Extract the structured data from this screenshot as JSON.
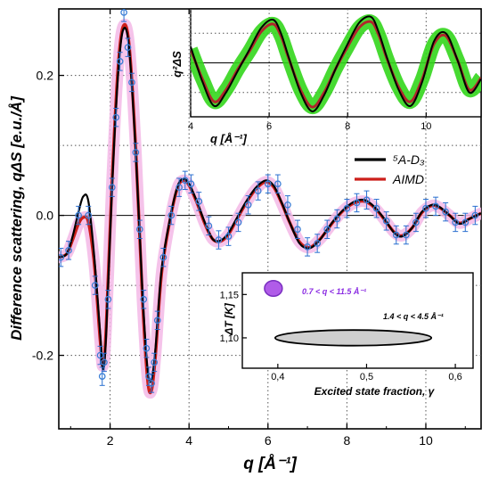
{
  "colors": {
    "experiment_points": "#3b7fd6",
    "experiment_errorbars": "#2a6fd0",
    "model_5A_D3": "#000000",
    "model_AIMD": "#cc1f1a",
    "aimd_band": "#f3b8e6",
    "inset_green_band": "#33d61c",
    "inset_model_dark": "#b0262b",
    "purple_marker": "#b05ce8",
    "purple_text": "#8a2be2",
    "ellipse_fill": "#cfcfcf",
    "grid": "#555555"
  },
  "chart_data": [
    {
      "id": "main",
      "type": "line",
      "xlabel": "q [Å⁻¹]",
      "ylabel": "Difference scattering, qΔS [e.u./Å]",
      "xlim": [
        0.7,
        11.4
      ],
      "ylim": [
        -0.305,
        0.295
      ],
      "x_ticks": [
        2,
        4,
        6,
        8,
        10
      ],
      "x_tick_labels": [
        "2",
        "4",
        "6",
        "8",
        "10"
      ],
      "y_ticks": [
        -0.2,
        0.0,
        0.2
      ],
      "y_tick_labels": [
        "-0.2",
        "0.0",
        "0.2"
      ],
      "grid": "dotted",
      "legend": {
        "position": "upper-right",
        "entries": [
          {
            "label": "⁵A-D₃",
            "color": "#000000"
          },
          {
            "label": "AIMD",
            "color": "#cc1f1a"
          }
        ]
      },
      "series": [
        {
          "name": "⁵A-D₃",
          "x": [
            0.7,
            0.9,
            1.05,
            1.2,
            1.32,
            1.45,
            1.6,
            1.75,
            1.82,
            1.9,
            2.05,
            2.2,
            2.33,
            2.48,
            2.65,
            2.82,
            2.95,
            3.05,
            3.15,
            3.3,
            3.5,
            3.7,
            3.85,
            4.0,
            4.2,
            4.4,
            4.6,
            4.8,
            5.0,
            5.2,
            5.45,
            5.7,
            5.95,
            6.15,
            6.35,
            6.55,
            6.8,
            7.05,
            7.3,
            7.5,
            7.7,
            7.95,
            8.2,
            8.45,
            8.7,
            8.95,
            9.2,
            9.4,
            9.65,
            9.9,
            10.15,
            10.35,
            10.6,
            10.85,
            11.1,
            11.4
          ],
          "y": [
            -0.06,
            -0.055,
            -0.03,
            0.005,
            0.027,
            0.02,
            -0.06,
            -0.17,
            -0.22,
            -0.17,
            0.04,
            0.2,
            0.265,
            0.24,
            0.09,
            -0.11,
            -0.22,
            -0.235,
            -0.19,
            -0.08,
            -0.01,
            0.04,
            0.052,
            0.045,
            0.02,
            -0.01,
            -0.034,
            -0.036,
            -0.025,
            -0.005,
            0.02,
            0.04,
            0.05,
            0.042,
            0.018,
            -0.01,
            -0.04,
            -0.047,
            -0.036,
            -0.02,
            -0.005,
            0.01,
            0.02,
            0.022,
            0.012,
            -0.005,
            -0.025,
            -0.03,
            -0.018,
            0.005,
            0.015,
            0.012,
            0.0,
            -0.012,
            -0.005,
            0.003
          ]
        },
        {
          "name": "AIMD",
          "x": [
            0.7,
            0.9,
            1.05,
            1.2,
            1.32,
            1.45,
            1.6,
            1.75,
            1.82,
            1.9,
            2.05,
            2.2,
            2.33,
            2.48,
            2.65,
            2.82,
            2.95,
            3.05,
            3.15,
            3.3,
            3.5,
            3.7,
            3.85,
            4.0,
            4.2,
            4.4,
            4.6,
            4.8,
            5.0,
            5.2,
            5.45,
            5.7,
            5.95,
            6.15,
            6.35,
            6.55,
            6.8,
            7.05,
            7.3,
            7.5,
            7.7,
            7.95,
            8.2,
            8.45,
            8.7,
            8.95,
            9.2,
            9.4,
            9.65,
            9.9,
            10.15,
            10.35,
            10.6,
            10.85,
            11.1,
            11.4
          ],
          "y": [
            -0.06,
            -0.055,
            -0.035,
            -0.012,
            -0.003,
            -0.01,
            -0.07,
            -0.18,
            -0.215,
            -0.16,
            0.05,
            0.21,
            0.27,
            0.245,
            0.095,
            -0.12,
            -0.235,
            -0.25,
            -0.2,
            -0.085,
            -0.012,
            0.038,
            0.05,
            0.043,
            0.018,
            -0.012,
            -0.034,
            -0.037,
            -0.027,
            -0.007,
            0.018,
            0.038,
            0.048,
            0.04,
            0.017,
            -0.01,
            -0.038,
            -0.046,
            -0.035,
            -0.021,
            -0.006,
            0.009,
            0.018,
            0.02,
            0.011,
            -0.006,
            -0.024,
            -0.029,
            -0.018,
            0.004,
            0.014,
            0.011,
            0.0,
            -0.011,
            -0.005,
            0.003
          ]
        },
        {
          "name": "",
          "type": "scatter",
          "x": [
            0.75,
            0.95,
            1.2,
            1.45,
            1.62,
            1.75,
            1.8,
            1.85,
            1.95,
            2.05,
            2.15,
            2.25,
            2.35,
            2.45,
            2.55,
            2.65,
            2.75,
            2.85,
            2.92,
            2.98,
            3.05,
            3.12,
            3.2,
            3.35,
            3.55,
            3.75,
            3.9,
            4.05,
            4.25,
            4.5,
            4.75,
            5.0,
            5.25,
            5.5,
            5.75,
            6.0,
            6.25,
            6.5,
            6.75,
            7.0,
            7.25,
            7.5,
            7.75,
            8.0,
            8.25,
            8.5,
            8.75,
            9.0,
            9.25,
            9.5,
            9.75,
            10.0,
            10.25,
            10.5,
            10.75,
            11.0,
            11.25
          ],
          "y": [
            -0.06,
            -0.05,
            0.0,
            0.0,
            -0.1,
            -0.2,
            -0.23,
            -0.21,
            -0.12,
            0.04,
            0.14,
            0.22,
            0.29,
            0.24,
            0.19,
            0.09,
            -0.02,
            -0.12,
            -0.19,
            -0.23,
            -0.24,
            -0.21,
            -0.15,
            -0.06,
            0.0,
            0.04,
            0.05,
            0.045,
            0.02,
            -0.015,
            -0.035,
            -0.03,
            -0.01,
            0.015,
            0.035,
            0.045,
            0.045,
            0.015,
            -0.02,
            -0.045,
            -0.04,
            -0.02,
            -0.005,
            0.01,
            0.018,
            0.022,
            0.01,
            -0.008,
            -0.028,
            -0.028,
            -0.01,
            0.01,
            0.013,
            0.005,
            -0.01,
            -0.01,
            0.0
          ],
          "error": 0.013
        }
      ]
    },
    {
      "id": "inset-top",
      "type": "line",
      "xlabel": "q [Å⁻¹]",
      "ylabel": "q²ΔS",
      "xlim": [
        4.0,
        11.4
      ],
      "ylim": [
        -1.0,
        1.0
      ],
      "x_ticks": [
        4,
        6,
        8,
        10
      ],
      "x_tick_labels": [
        "4",
        "6",
        "8",
        "10"
      ],
      "y_ticks": [],
      "grid": "dotted",
      "series": [
        {
          "name": "⁵A-D₃",
          "x": [
            4.0,
            4.3,
            4.6,
            4.9,
            5.2,
            5.5,
            5.8,
            6.1,
            6.3,
            6.5,
            6.8,
            7.1,
            7.4,
            7.7,
            8.0,
            8.3,
            8.6,
            8.8,
            9.0,
            9.3,
            9.6,
            9.9,
            10.2,
            10.5,
            10.8,
            11.1,
            11.4
          ],
          "y": [
            0.3,
            -0.35,
            -0.8,
            -0.55,
            -0.15,
            0.25,
            0.65,
            0.8,
            0.55,
            0.1,
            -0.55,
            -0.9,
            -0.6,
            -0.1,
            0.35,
            0.75,
            0.85,
            0.55,
            0.1,
            -0.5,
            -0.8,
            -0.35,
            0.4,
            0.55,
            0.05,
            -0.55,
            -0.3
          ]
        },
        {
          "name": "AIMD",
          "x": [
            4.0,
            4.3,
            4.6,
            4.9,
            5.2,
            5.5,
            5.8,
            6.1,
            6.3,
            6.5,
            6.8,
            7.1,
            7.4,
            7.7,
            8.0,
            8.3,
            8.6,
            8.8,
            9.0,
            9.3,
            9.6,
            9.9,
            10.2,
            10.5,
            10.8,
            11.1,
            11.4
          ],
          "y": [
            0.25,
            -0.3,
            -0.72,
            -0.5,
            -0.12,
            0.22,
            0.58,
            0.72,
            0.5,
            0.08,
            -0.5,
            -0.82,
            -0.55,
            -0.1,
            0.3,
            0.66,
            0.76,
            0.5,
            0.08,
            -0.45,
            -0.72,
            -0.3,
            0.35,
            0.5,
            0.05,
            -0.5,
            -0.28
          ]
        }
      ]
    },
    {
      "id": "inset-bottom",
      "type": "scatter",
      "xlabel": "Excited state fraction, γ",
      "ylabel": "ΔT [K]",
      "xlim": [
        0.36,
        0.62
      ],
      "ylim": [
        1.065,
        1.175
      ],
      "x_ticks": [
        0.4,
        0.5,
        0.6
      ],
      "x_tick_labels": [
        "0,4",
        "0,5",
        "0,6"
      ],
      "y_ticks": [
        1.1,
        1.15
      ],
      "y_tick_labels": [
        "1,10",
        "1,15"
      ],
      "regions": [
        {
          "label": "0.7 < q < 11.5 Å⁻¹",
          "shape": "circle",
          "center": [
            0.395,
            1.157
          ],
          "radius": [
            0.01,
            0.009
          ],
          "color": "#b05ce8"
        },
        {
          "label": "1.4 < q < 4.5 Å⁻¹",
          "shape": "ellipse",
          "center": [
            0.485,
            1.1
          ],
          "radius": [
            0.088,
            0.009
          ],
          "color": "#cfcfcf"
        }
      ]
    }
  ]
}
